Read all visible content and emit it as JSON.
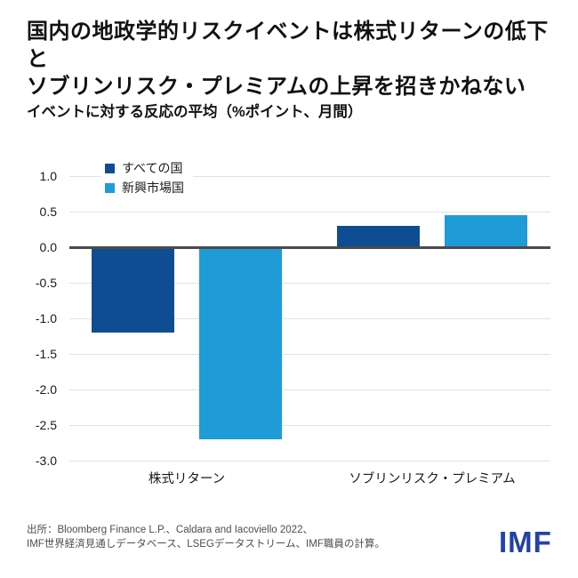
{
  "header": {
    "title_line1": "国内の地政学的リスクイベントは株式リターンの低下と",
    "title_line2": "ソブリンリスク・プレミアムの上昇を招きかねない",
    "subtitle": "イベントに対する反応の平均（%ポイント、月間）"
  },
  "chart_data": {
    "type": "bar",
    "categories": [
      "株式リターン",
      "ソブリンリスク・プレミアム"
    ],
    "series": [
      {
        "name": "すべての国",
        "color": "#0f4d92",
        "values": [
          -1.2,
          0.3
        ]
      },
      {
        "name": "新興市場国",
        "color": "#1f9bd8",
        "values": [
          -2.7,
          0.45
        ]
      }
    ],
    "title": "イベントに対する反応の平均（%ポイント、月間）",
    "xlabel": "",
    "ylabel": "",
    "ylim": [
      -3.0,
      1.0
    ],
    "yticks": [
      1.0,
      0.5,
      0.0,
      -0.5,
      -1.0,
      -1.5,
      -2.0,
      -2.5,
      -3.0
    ],
    "grid": true,
    "legend_position": "top-left-inside"
  },
  "footer": {
    "source_line1": "出所：Bloomberg Finance L.P.、Caldara and Iacoviello 2022、",
    "source_line2": "IMF世界経済見通しデータベース、LSEGデータストリーム、IMF職員の計算。",
    "logo_text": "IMF"
  },
  "colors": {
    "series_all_countries": "#0f4d92",
    "series_emerging_markets": "#1f9bd8",
    "zero_line": "#4a4a4a",
    "gridline": "#e2e2e2",
    "logo_blue": "#2442a5",
    "text_primary": "#111111",
    "text_source": "#4d4d4d"
  }
}
